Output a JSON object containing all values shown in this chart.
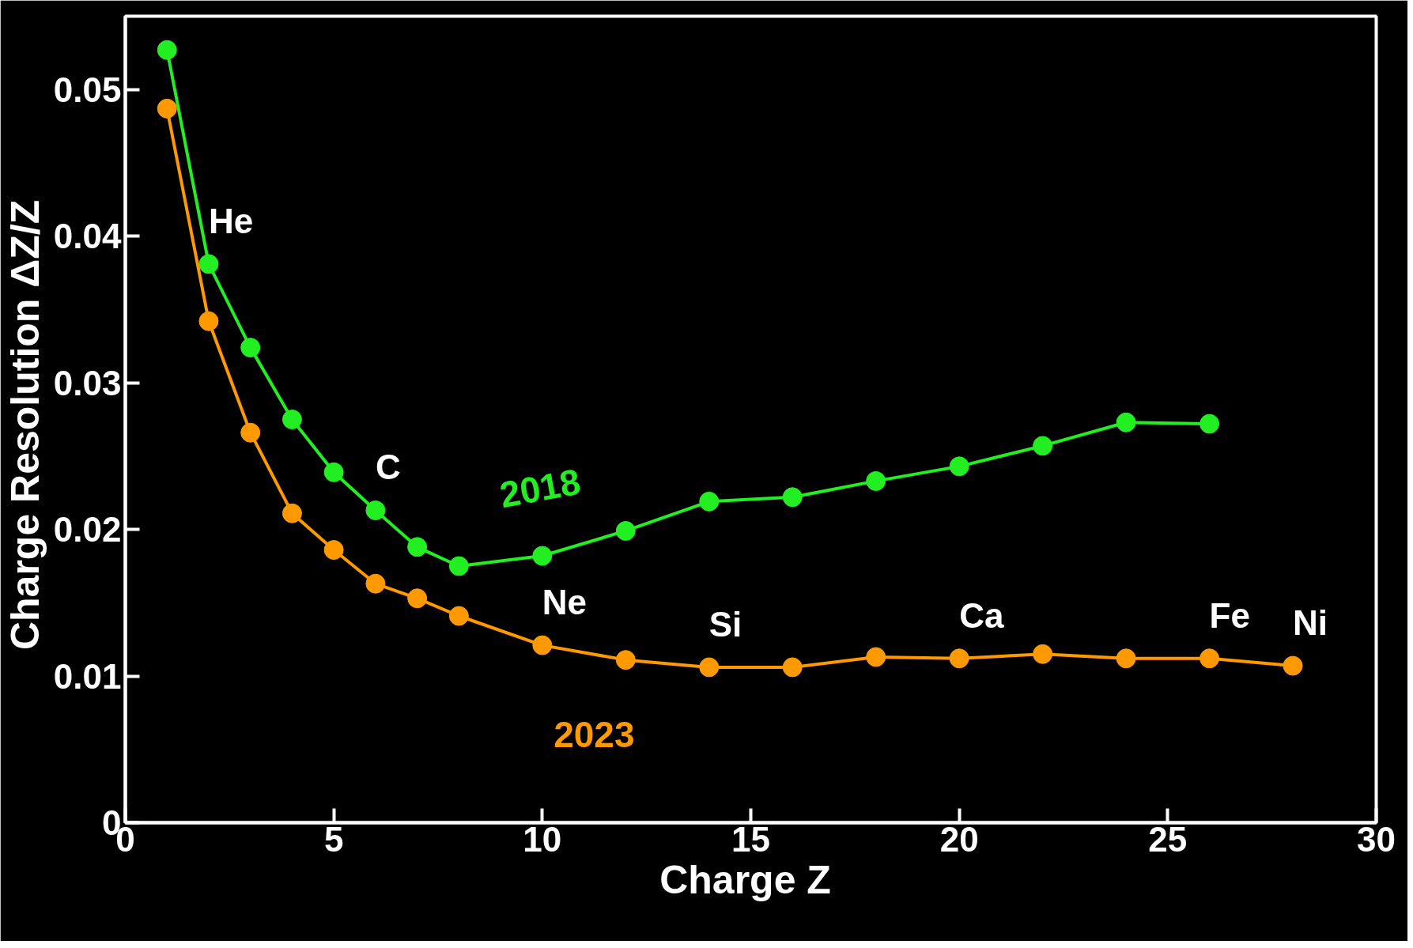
{
  "chart_data": {
    "type": "line",
    "xlabel": "Charge  Z",
    "ylabel": "Charge Resolution  ΔZ/Z",
    "xlim": [
      0,
      30
    ],
    "xticks": [
      0,
      5,
      10,
      15,
      20,
      25,
      30
    ],
    "ylim": [
      0,
      0.055
    ],
    "yticks": [
      0,
      0.01,
      0.02,
      0.03,
      0.04,
      0.05
    ],
    "marker": "circle",
    "line_style": "solid",
    "grid": false,
    "legend": false,
    "series": [
      {
        "name": "2018",
        "color": "#22ee22",
        "x": [
          1,
          2,
          3,
          4,
          5,
          6,
          7,
          8,
          10,
          12,
          14,
          16,
          18,
          20,
          22,
          24,
          26
        ],
        "values": [
          0.0527,
          0.0381,
          0.0324,
          0.0275,
          0.0239,
          0.0213,
          0.0188,
          0.0175,
          0.0182,
          0.0199,
          0.0219,
          0.0222,
          0.0233,
          0.0243,
          0.0257,
          0.0273,
          0.0272
        ]
      },
      {
        "name": "2023",
        "color": "#ff9900",
        "x": [
          1,
          2,
          3,
          4,
          5,
          6,
          7,
          8,
          10,
          12,
          14,
          16,
          18,
          20,
          22,
          24,
          26,
          28
        ],
        "values": [
          0.0487,
          0.0342,
          0.0266,
          0.0211,
          0.0186,
          0.0163,
          0.0153,
          0.0141,
          0.0121,
          0.0111,
          0.0106,
          0.0106,
          0.0113,
          0.0112,
          0.0115,
          0.0112,
          0.0112,
          0.0107
        ]
      }
    ],
    "annotations": [
      {
        "text": "He",
        "x": 2,
        "y": 0.0381
      },
      {
        "text": "C",
        "x": 6,
        "y": 0.0213
      },
      {
        "text": "Ne",
        "x": 10,
        "y": 0.0121
      },
      {
        "text": "Si",
        "x": 14,
        "y": 0.0106
      },
      {
        "text": "Ca",
        "x": 20,
        "y": 0.0112
      },
      {
        "text": "Fe",
        "x": 26,
        "y": 0.0112
      },
      {
        "text": "Ni",
        "x": 28,
        "y": 0.0107
      }
    ]
  }
}
